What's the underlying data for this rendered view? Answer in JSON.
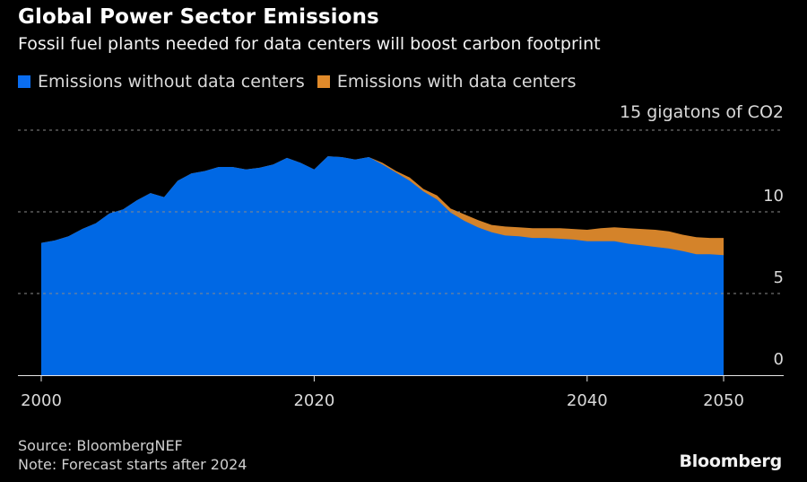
{
  "header": {
    "title": "Global Power Sector Emissions",
    "subtitle": "Fossil fuel plants needed for data centers will boost carbon footprint"
  },
  "legend": [
    {
      "label": "Emissions without data centers",
      "color": "#0a6df0"
    },
    {
      "label": "Emissions with data centers",
      "color": "#e08a2a"
    }
  ],
  "footer": {
    "source": "Source: BloombergNEF",
    "note": "Note: Forecast starts after 2024",
    "brand": "Bloomberg"
  },
  "chart_data": {
    "type": "area",
    "stacked": false,
    "title": "Global Power Sector Emissions",
    "subtitle": "Fossil fuel plants needed for data centers will boost carbon footprint",
    "xlabel": "",
    "ylabel": "gigatons of CO2",
    "y_unit_label": "15 gigatons of CO2",
    "xlim": [
      2000,
      2050
    ],
    "ylim": [
      0,
      15
    ],
    "x_ticks": [
      2000,
      2020,
      2040,
      2050
    ],
    "y_ticks": [
      0,
      5,
      10,
      15
    ],
    "y_tick_labels": [
      "0",
      "5",
      "10",
      "15 gigatons of CO2"
    ],
    "grid": true,
    "legend_position": "top-left",
    "annotations": [
      "Forecast starts after 2024"
    ],
    "x": [
      2000,
      2001,
      2002,
      2003,
      2004,
      2005,
      2006,
      2007,
      2008,
      2009,
      2010,
      2011,
      2012,
      2013,
      2014,
      2015,
      2016,
      2017,
      2018,
      2019,
      2020,
      2021,
      2022,
      2023,
      2024,
      2025,
      2026,
      2027,
      2028,
      2029,
      2030,
      2031,
      2032,
      2033,
      2034,
      2035,
      2036,
      2037,
      2038,
      2039,
      2040,
      2041,
      2042,
      2043,
      2044,
      2045,
      2046,
      2047,
      2048,
      2049,
      2050
    ],
    "series": [
      {
        "name": "Emissions without data centers",
        "color": "#0068e4",
        "values": [
          8.1,
          8.25,
          8.5,
          8.95,
          9.3,
          9.9,
          10.15,
          10.7,
          11.15,
          10.9,
          11.9,
          12.35,
          12.5,
          12.75,
          12.75,
          12.6,
          12.7,
          12.9,
          13.3,
          13.0,
          12.6,
          13.4,
          13.35,
          13.2,
          13.35,
          12.9,
          12.4,
          11.9,
          11.25,
          10.75,
          9.95,
          9.45,
          9.05,
          8.75,
          8.55,
          8.5,
          8.4,
          8.4,
          8.35,
          8.3,
          8.2,
          8.2,
          8.2,
          8.05,
          7.95,
          7.85,
          7.75,
          7.6,
          7.4,
          7.4,
          7.35
        ]
      },
      {
        "name": "Emissions with data centers",
        "color": "#d4832a",
        "values": [
          8.1,
          8.25,
          8.5,
          8.95,
          9.3,
          9.9,
          10.15,
          10.7,
          11.15,
          10.9,
          11.9,
          12.35,
          12.5,
          12.75,
          12.75,
          12.6,
          12.7,
          12.9,
          13.3,
          13.0,
          12.6,
          13.4,
          13.35,
          13.2,
          13.35,
          13.0,
          12.5,
          12.1,
          11.4,
          11.0,
          10.2,
          9.85,
          9.5,
          9.2,
          9.1,
          9.05,
          9.0,
          9.0,
          9.0,
          8.95,
          8.9,
          9.0,
          9.05,
          9.0,
          8.95,
          8.9,
          8.8,
          8.6,
          8.45,
          8.4,
          8.4
        ]
      }
    ]
  }
}
